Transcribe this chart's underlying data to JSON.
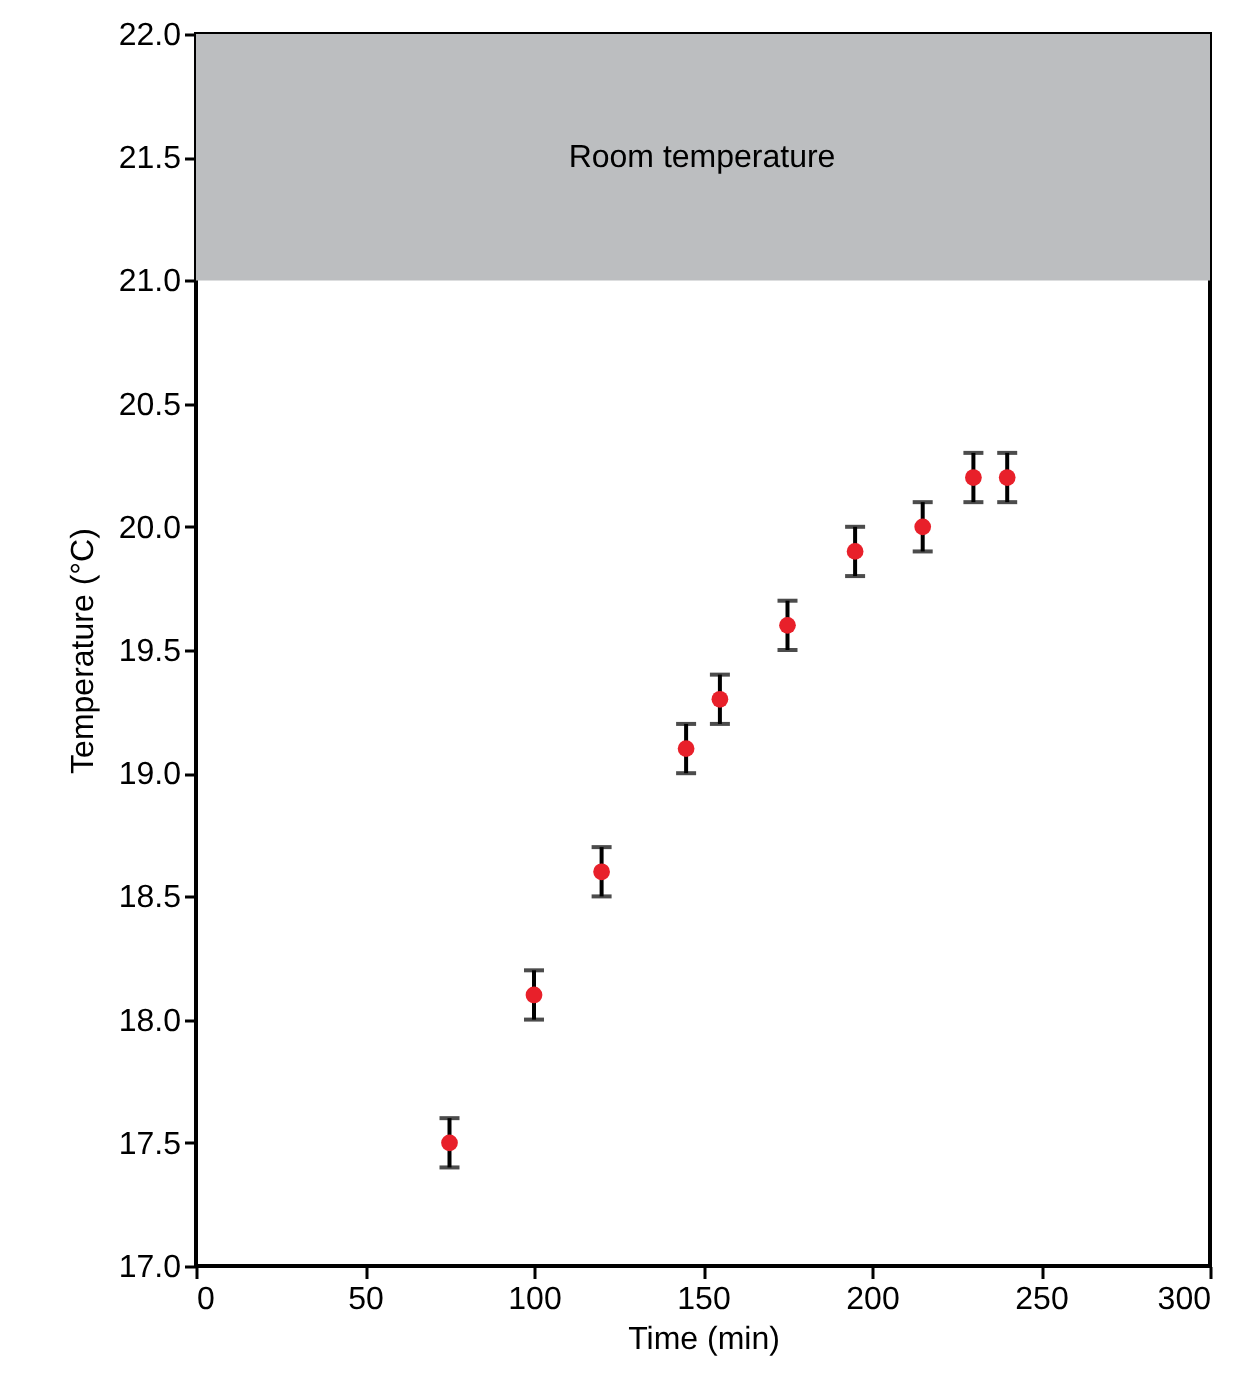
{
  "chart_data": {
    "type": "scatter",
    "xlabel": "Time  (min)",
    "ylabel": "Temperature (°C)",
    "x": [
      75,
      100,
      120,
      145,
      155,
      175,
      195,
      215,
      230,
      240
    ],
    "series": [
      {
        "color": "#e8202a",
        "values": [
          17.5,
          18.1,
          18.6,
          19.1,
          19.3,
          19.6,
          19.9,
          20.0,
          20.2,
          20.2
        ],
        "errors": [
          0.1,
          0.1,
          0.1,
          0.1,
          0.1,
          0.1,
          0.1,
          0.1,
          0.1,
          0.1
        ]
      }
    ],
    "xlim": [
      0,
      300
    ],
    "xticks": [
      0,
      50,
      100,
      150,
      200,
      250,
      300
    ],
    "ylim": [
      17,
      22
    ],
    "yticks": [
      {
        "value": 17,
        "label": "17.0"
      },
      {
        "value": 17.5,
        "label": "17.5"
      },
      {
        "value": 18,
        "label": "18.0"
      },
      {
        "value": 18.5,
        "label": "18.5"
      },
      {
        "value": 19,
        "label": "19.0"
      },
      {
        "value": 19.5,
        "label": "19.5"
      },
      {
        "value": 20,
        "label": "20.0"
      },
      {
        "value": 20.5,
        "label": "20.5"
      },
      {
        "value": 21,
        "label": "21.0"
      },
      {
        "value": 21.5,
        "label": "21.5"
      },
      {
        "value": 22,
        "label": "22.0"
      }
    ],
    "bands": [
      {
        "axis": "y",
        "from": 21,
        "to": 22,
        "label": "Room temperature",
        "color": "#bcbec0"
      }
    ],
    "marker": "circle",
    "grid": false
  }
}
